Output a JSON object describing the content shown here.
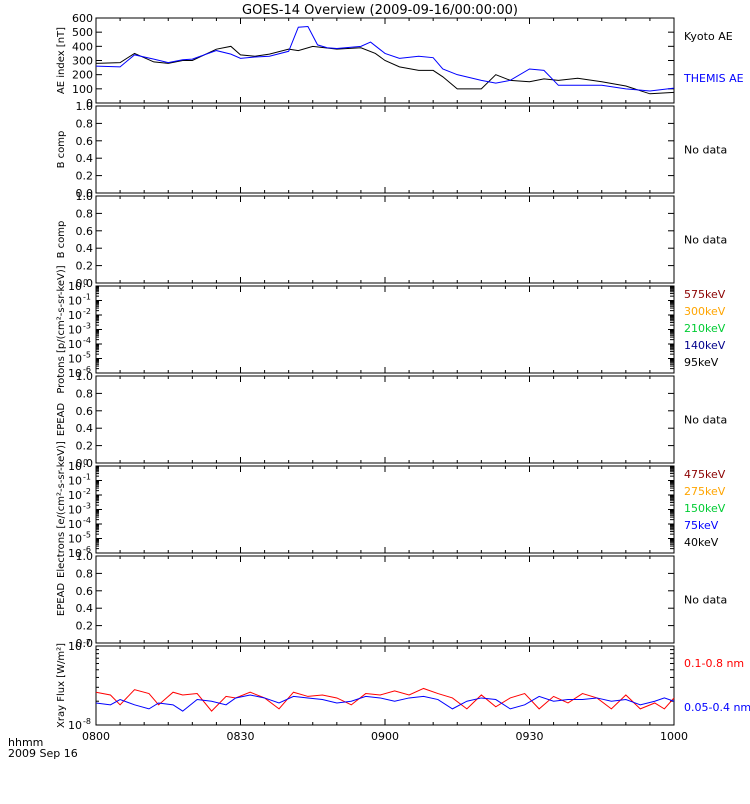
{
  "title": "GOES-14 Overview (2009-09-16/00:00:00)",
  "footer": {
    "line1": "hhmm",
    "line2": "2009 Sep 16"
  },
  "colors": {
    "black": "#000000",
    "blue": "#0000ff",
    "red": "#ff0000",
    "dark_red": "#8b0000",
    "orange": "#ffa500",
    "green": "#00cc33",
    "dark_blue": "#00008b"
  },
  "chart_data": [
    {
      "type": "line",
      "panel": "ae",
      "ylabel": "AE index [nT]",
      "ylim": [
        0,
        600
      ],
      "yticks": [
        "0",
        "100",
        "200",
        "300",
        "400",
        "500",
        "600"
      ],
      "x_ticks": [
        "0800",
        "0830",
        "0900",
        "0930",
        "1000"
      ],
      "x_range": [
        "08:00",
        "10:00"
      ],
      "series": [
        {
          "name": "Kyoto AE",
          "color": "#000000",
          "x_min": [
            0,
            5,
            8,
            12,
            15,
            18,
            20,
            25,
            28,
            30,
            33,
            36,
            40,
            42,
            45,
            50,
            55,
            58,
            60,
            63,
            67,
            70,
            72,
            75,
            80,
            83,
            86,
            90,
            93,
            96,
            100,
            105,
            110,
            115,
            120
          ],
          "values": [
            280,
            285,
            350,
            290,
            280,
            300,
            300,
            380,
            400,
            340,
            330,
            345,
            380,
            370,
            400,
            380,
            390,
            350,
            300,
            255,
            230,
            230,
            185,
            100,
            100,
            200,
            160,
            150,
            170,
            160,
            175,
            150,
            120,
            65,
            75
          ]
        },
        {
          "name": "THEMIS AE",
          "color": "#0000ff",
          "x_min": [
            0,
            5,
            8,
            12,
            15,
            18,
            20,
            25,
            28,
            30,
            33,
            36,
            40,
            42,
            44,
            46,
            48,
            50,
            55,
            57,
            60,
            63,
            67,
            70,
            72,
            75,
            80,
            83,
            86,
            90,
            93,
            96,
            100,
            105,
            110,
            115,
            120
          ],
          "values": [
            260,
            255,
            340,
            310,
            285,
            305,
            310,
            370,
            345,
            315,
            325,
            330,
            365,
            535,
            540,
            410,
            390,
            385,
            400,
            430,
            350,
            315,
            330,
            320,
            240,
            200,
            160,
            140,
            160,
            240,
            230,
            125,
            125,
            125,
            100,
            85,
            105
          ]
        }
      ],
      "legend": [
        "Kyoto AE",
        "THEMIS AE"
      ]
    },
    {
      "type": "line",
      "panel": "b1",
      "ylabel": "B comp",
      "ylim": [
        0,
        1
      ],
      "yticks": [
        "0.0",
        "0.2",
        "0.4",
        "0.6",
        "0.8",
        "1.0"
      ],
      "series": [],
      "note": "No data"
    },
    {
      "type": "line",
      "panel": "b2",
      "ylabel": "B comp",
      "ylim": [
        0,
        1
      ],
      "yticks": [
        "0.0",
        "0.2",
        "0.4",
        "0.6",
        "0.8",
        "1.0"
      ],
      "series": [],
      "note": "No data"
    },
    {
      "type": "line",
      "panel": "protons",
      "ylabel": "Protons [p/(cm²-s-sr-keV)]",
      "scale": "log",
      "ylim": [
        1e-06,
        1
      ],
      "series": [],
      "legend": [
        {
          "label": "575keV",
          "color": "#8b0000"
        },
        {
          "label": "300keV",
          "color": "#ffa500"
        },
        {
          "label": "210keV",
          "color": "#00cc33"
        },
        {
          "label": "140keV",
          "color": "#00008b"
        },
        {
          "label": "95keV",
          "color": "#000000"
        }
      ]
    },
    {
      "type": "line",
      "panel": "epead1",
      "ylabel": "EPEAD",
      "ylim": [
        0,
        1
      ],
      "yticks": [
        "0.0",
        "0.2",
        "0.4",
        "0.6",
        "0.8",
        "1.0"
      ],
      "series": [],
      "note": "No data"
    },
    {
      "type": "line",
      "panel": "electrons",
      "ylabel": "Electrons [e/(cm²-s-sr-keV)]",
      "scale": "log",
      "ylim": [
        1e-06,
        1
      ],
      "series": [],
      "legend": [
        {
          "label": "475keV",
          "color": "#8b0000"
        },
        {
          "label": "275keV",
          "color": "#ffa500"
        },
        {
          "label": "150keV",
          "color": "#00cc33"
        },
        {
          "label": "75keV",
          "color": "#0000ff"
        },
        {
          "label": "40keV",
          "color": "#000000"
        }
      ]
    },
    {
      "type": "line",
      "panel": "epead2",
      "ylabel": "EPEAD",
      "ylim": [
        0,
        1
      ],
      "yticks": [
        "0.0",
        "0.2",
        "0.4",
        "0.6",
        "0.8",
        "1.0"
      ],
      "series": [],
      "note": "No data"
    },
    {
      "type": "line",
      "panel": "xray",
      "ylabel": "Xray Flux [W/m²]",
      "scale": "log",
      "ylim": [
        1e-08,
        1e-07
      ],
      "series": [
        {
          "name": "0.1-0.8 nm",
          "color": "#ff0000",
          "x_min": [
            0,
            3,
            5,
            8,
            11,
            13,
            16,
            18,
            21,
            24,
            27,
            29,
            32,
            35,
            38,
            41,
            44,
            47,
            50,
            53,
            56,
            59,
            62,
            65,
            68,
            71,
            74,
            77,
            80,
            83,
            86,
            89,
            92,
            95,
            98,
            101,
            104,
            107,
            110,
            113,
            116,
            118,
            120
          ],
          "values": [
            2.6e-08,
            2.4e-08,
            1.8e-08,
            2.8e-08,
            2.5e-08,
            1.8e-08,
            2.6e-08,
            2.4e-08,
            2.5e-08,
            1.5e-08,
            2.3e-08,
            2.2e-08,
            2.6e-08,
            2.2e-08,
            1.6e-08,
            2.6e-08,
            2.3e-08,
            2.4e-08,
            2.2e-08,
            1.8e-08,
            2.5e-08,
            2.4e-08,
            2.7e-08,
            2.4e-08,
            2.9e-08,
            2.5e-08,
            2.2e-08,
            1.6e-08,
            2.4e-08,
            1.7e-08,
            2.2e-08,
            2.5e-08,
            1.6e-08,
            2.3e-08,
            1.9e-08,
            2.5e-08,
            2.2e-08,
            1.6e-08,
            2.4e-08,
            1.6e-08,
            1.9e-08,
            1.6e-08,
            2.2e-08
          ]
        },
        {
          "name": "0.05-0.4 nm",
          "color": "#0000ff",
          "x_min": [
            0,
            3,
            5,
            8,
            11,
            13,
            16,
            18,
            21,
            24,
            27,
            29,
            32,
            35,
            38,
            41,
            44,
            47,
            50,
            53,
            56,
            59,
            62,
            65,
            68,
            71,
            74,
            77,
            80,
            83,
            86,
            89,
            92,
            95,
            98,
            101,
            104,
            107,
            110,
            113,
            116,
            118,
            120
          ],
          "values": [
            1.9e-08,
            1.8e-08,
            2.1e-08,
            1.8e-08,
            1.6e-08,
            1.9e-08,
            1.8e-08,
            1.5e-08,
            2.1e-08,
            2e-08,
            1.8e-08,
            2.2e-08,
            2.4e-08,
            2.2e-08,
            1.9e-08,
            2.3e-08,
            2.2e-08,
            2.1e-08,
            1.9e-08,
            2e-08,
            2.3e-08,
            2.2e-08,
            2e-08,
            2.2e-08,
            2.3e-08,
            2.1e-08,
            1.6e-08,
            2e-08,
            2.2e-08,
            2.1e-08,
            1.6e-08,
            1.8e-08,
            2.3e-08,
            2e-08,
            2.1e-08,
            2.1e-08,
            2.2e-08,
            2e-08,
            2.1e-08,
            1.8e-08,
            2e-08,
            2.2e-08,
            2e-08
          ]
        }
      ],
      "legend": [
        "0.1-0.8 nm",
        "0.05-0.4 nm"
      ]
    }
  ]
}
